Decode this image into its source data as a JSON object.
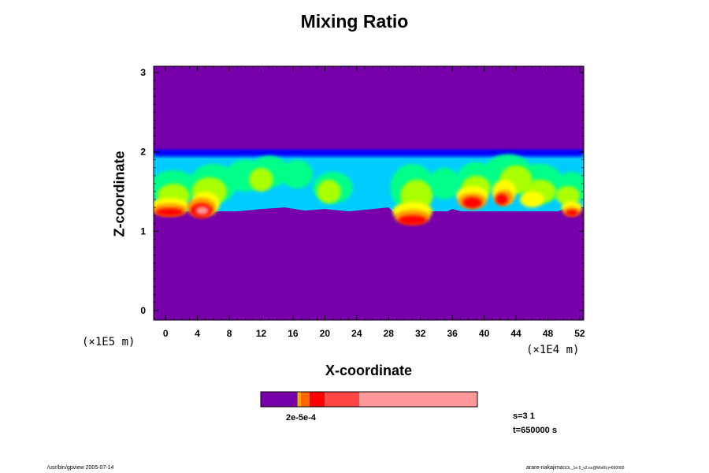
{
  "chart_data": {
    "type": "heatmap",
    "title": "Mixing Ratio",
    "xlabel": "X-coordinate",
    "ylabel": "Z-coordinate",
    "x_scale_note": "(×1E4 m)",
    "y_scale_note": "(×1E5 m)",
    "xlim": [
      -1.5,
      52.5
    ],
    "ylim": [
      -0.12,
      3.08
    ],
    "x_ticks": [
      0,
      4,
      8,
      12,
      16,
      20,
      24,
      28,
      32,
      36,
      40,
      44,
      48,
      52
    ],
    "x_tick_labels": [
      "0",
      "4",
      "8",
      "12",
      "16",
      "20",
      "24",
      "28",
      "32",
      "36",
      "40",
      "44",
      "48",
      "52"
    ],
    "y_ticks": [
      0,
      1,
      2,
      3
    ],
    "y_tick_labels": [
      "0",
      "1",
      "2",
      "3"
    ],
    "background_color": "#7700aa",
    "cloud_top": 2.0,
    "cloud_base": 1.25,
    "colorbar": {
      "label": "2e-5e-4",
      "colors": [
        "#7700aa",
        "#cccc00",
        "#ff9900",
        "#ff6600",
        "#ff0000",
        "#ff4444",
        "#ff9999"
      ],
      "fractions": [
        0.17,
        0.005,
        0.01,
        0.04,
        0.07,
        0.16,
        0.545
      ]
    },
    "color_levels": {
      "level_1": "#0000ff",
      "level_2": "#00ccff",
      "level_3": "#00ff88",
      "level_4": "#aaff00",
      "level_5": "#ffff00",
      "level_6": "#ff9900",
      "level_7": "#ff0000",
      "level_8": "#ff9999"
    }
  },
  "info": {
    "s": "s=3 1",
    "t": "t=650000 s"
  },
  "footer": {
    "left": "/usr/bin/gpview 2005-07-14",
    "right_main": "arare-nakajima",
    "right_small": "SOL_1e-5_v2.nc@MixRt,t=650000"
  }
}
